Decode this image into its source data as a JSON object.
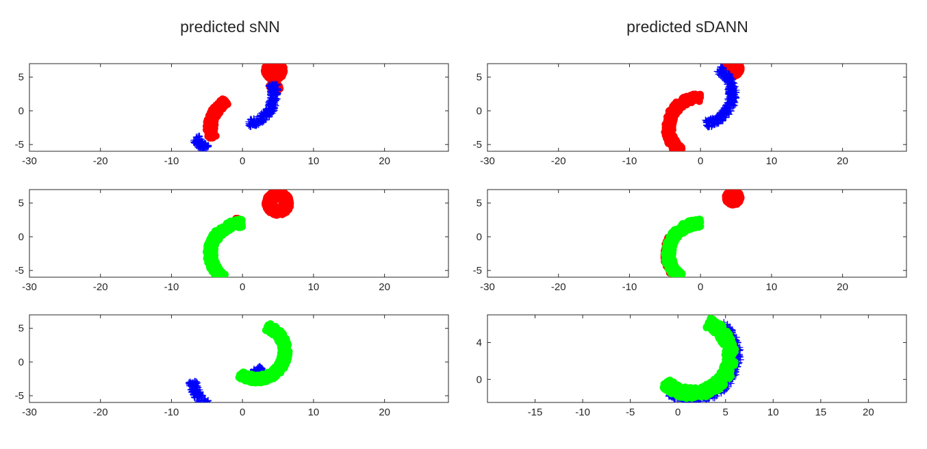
{
  "column_titles": [
    "predicted sNN",
    "predicted sDANN"
  ],
  "colors": {
    "red_class": "#ff0000",
    "blue_class": "#0000ff",
    "green_class": "#00ff00"
  },
  "chart_data": [
    {
      "type": "scatter",
      "column": 0,
      "row": 0,
      "title": "predicted sNN",
      "xlim": [
        -30,
        29
      ],
      "ylim": [
        -6,
        7
      ],
      "xticks": [
        -30,
        -20,
        -10,
        0,
        10,
        20
      ],
      "yticks": [
        -5,
        0,
        5
      ],
      "series": [
        {
          "marker": "circle",
          "color": "#ff0000",
          "arcs": [
            {
              "cx": 0,
              "cy": -2.5,
              "r": 4.5,
              "a0": 120,
              "a1": 200
            },
            {
              "cx": 0,
              "cy": 0,
              "r": 5.8,
              "a0": 30,
              "a1": 45
            },
            {
              "cx": 4.5,
              "cy": 6,
              "r": 0.8,
              "a0": 0,
              "a1": 360
            }
          ]
        },
        {
          "marker": "plus",
          "color": "#0000ff",
          "arcs": [
            {
              "cx": 0,
              "cy": 2.5,
              "r": 4.5,
              "a0": -80,
              "a1": 20
            },
            {
              "cx": -2.5,
              "cy": -2,
              "r": 4.5,
              "a0": 205,
              "a1": 235
            }
          ]
        }
      ]
    },
    {
      "type": "scatter",
      "column": 0,
      "row": 1,
      "xlim": [
        -30,
        29
      ],
      "ylim": [
        -6,
        7
      ],
      "xticks": [
        -30,
        -20,
        -10,
        0,
        10,
        20
      ],
      "yticks": [
        -5,
        0,
        5
      ],
      "series": [
        {
          "marker": "circle",
          "color": "#ff0000",
          "arcs": [
            {
              "cx": 5,
              "cy": 5,
              "r": 1.2,
              "a0": 0,
              "a1": 360
            },
            {
              "cx": -0.5,
              "cy": -2.5,
              "r": 4.7,
              "a0": 90,
              "a1": 95
            }
          ]
        },
        {
          "marker": "circle",
          "color": "#00ff00",
          "arcs": [
            {
              "cx": 0,
              "cy": -2.5,
              "r": 4.5,
              "a0": 90,
              "a1": 232
            }
          ]
        }
      ]
    },
    {
      "type": "scatter",
      "column": 0,
      "row": 2,
      "xlim": [
        -30,
        29
      ],
      "ylim": [
        -6,
        7
      ],
      "xticks": [
        -30,
        -20,
        -10,
        0,
        10,
        20
      ],
      "yticks": [
        -5,
        0,
        5
      ],
      "series": [
        {
          "marker": "plus",
          "color": "#0000ff",
          "arcs": [
            {
              "cx": -2.5,
              "cy": -2.5,
              "r": 4.5,
              "a0": 185,
              "a1": 235
            },
            {
              "cx": 0,
              "cy": 2.5,
              "r": 4.5,
              "a0": -75,
              "a1": -50
            }
          ]
        },
        {
          "marker": "circle",
          "color": "#00ff00",
          "arcs": [
            {
              "cx": 2,
              "cy": 1.5,
              "r": 4,
              "a0": -125,
              "a1": 70
            }
          ]
        }
      ]
    },
    {
      "type": "scatter",
      "column": 1,
      "row": 0,
      "title": "predicted sDANN",
      "xlim": [
        -30,
        29
      ],
      "ylim": [
        -6,
        7
      ],
      "xticks": [
        -30,
        -20,
        -10,
        0,
        10,
        20
      ],
      "yticks": [
        -5,
        0,
        5
      ],
      "series": [
        {
          "marker": "circle",
          "color": "#ff0000",
          "arcs": [
            {
              "cx": 0,
              "cy": -2.5,
              "r": 4.5,
              "a0": 90,
              "a1": 232
            },
            {
              "cx": 4.5,
              "cy": 6.3,
              "r": 0.6,
              "a0": 0,
              "a1": 360
            }
          ]
        },
        {
          "marker": "plus",
          "color": "#0000ff",
          "arcs": [
            {
              "cx": 0,
              "cy": 2.5,
              "r": 4.5,
              "a0": -80,
              "a1": 55
            }
          ]
        }
      ]
    },
    {
      "type": "scatter",
      "column": 1,
      "row": 1,
      "xlim": [
        -30,
        29
      ],
      "ylim": [
        -6,
        7
      ],
      "xticks": [
        -30,
        -20,
        -10,
        0,
        10,
        20
      ],
      "yticks": [
        -5,
        0,
        5
      ],
      "series": [
        {
          "marker": "circle",
          "color": "#ff0000",
          "arcs": [
            {
              "cx": 4.6,
              "cy": 5.8,
              "r": 0.5,
              "a0": 0,
              "a1": 360
            },
            {
              "cx": 0,
              "cy": -2.5,
              "r": 4.6,
              "a0": 150,
              "a1": 230
            }
          ]
        },
        {
          "marker": "circle",
          "color": "#00ff00",
          "arcs": [
            {
              "cx": 0,
              "cy": -2.5,
              "r": 4.5,
              "a0": 90,
              "a1": 230
            }
          ]
        }
      ]
    },
    {
      "type": "scatter",
      "column": 1,
      "row": 2,
      "xlim": [
        -20,
        24
      ],
      "ylim": [
        -2.5,
        7
      ],
      "xticks": [
        -15,
        -10,
        -5,
        0,
        5,
        10,
        15,
        20
      ],
      "yticks": [
        0,
        4
      ],
      "series": [
        {
          "marker": "plus",
          "color": "#0000ff",
          "arcs": [
            {
              "cx": 1.5,
              "cy": 2.5,
              "r": 4.5,
              "a0": -120,
              "a1": 50
            }
          ]
        },
        {
          "marker": "circle",
          "color": "#00ff00",
          "arcs": [
            {
              "cx": 1.5,
              "cy": 2.5,
              "r": 4,
              "a0": -135,
              "a1": 65
            }
          ]
        }
      ]
    }
  ]
}
